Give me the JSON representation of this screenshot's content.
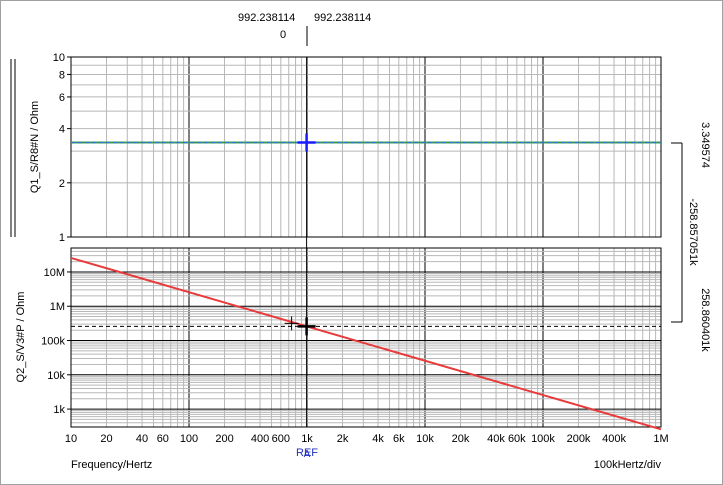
{
  "header": {
    "cursor_a_value": "992.238114",
    "cursor_b_value": "992.238114",
    "cursor_offset": "0"
  },
  "footer": {
    "x_axis_label": "Frequency/Hertz",
    "x_div_label": "100kHertz/div",
    "ref_label": "REF",
    "ref_marker": "A"
  },
  "right_readouts": {
    "top_value": "3.349574",
    "mid_value": "-258.857051k",
    "bottom_value": "258.860401k"
  },
  "colors": {
    "background": "#ffffff",
    "grid_major": "#000000",
    "grid_minor": "#b8b8b8",
    "series_top": "#3a9a64",
    "series_top_overlay": "#2f6fd6",
    "series_bottom": "#e83a3a",
    "cursor_top": "#1a1aff",
    "cursor_bottom": "#000000"
  },
  "chart_data": [
    {
      "type": "line",
      "ylabel": "Q1_S/R8#N  / Ohm",
      "x_scale": "log",
      "y_scale": "log",
      "xlim": [
        10,
        1000000
      ],
      "ylim": [
        1,
        10
      ],
      "y_tick_labels": [
        "1",
        "2",
        "4",
        "6",
        "8",
        "10"
      ],
      "y_ticks": [
        1,
        2,
        4,
        6,
        8,
        10
      ],
      "series": [
        {
          "x": [
            10,
            1000000
          ],
          "y": [
            3.349574,
            3.349574
          ]
        }
      ],
      "cursor": {
        "x": 992.238114,
        "y": 3.349574
      },
      "grid": true
    },
    {
      "type": "line",
      "ylabel": "Q2_S/V3#P  / Ohm",
      "x_scale": "log",
      "y_scale": "log",
      "xlim": [
        10,
        1000000
      ],
      "ylim": [
        300,
        50000000
      ],
      "y_tick_labels": [
        "1k",
        "10k",
        "100k",
        "1M",
        "10M"
      ],
      "y_ticks": [
        1000,
        10000,
        100000,
        1000000,
        10000000
      ],
      "x_tick_labels": [
        "10",
        "20",
        "40",
        "60",
        "100",
        "200",
        "400",
        "600",
        "1k",
        "2k",
        "4k",
        "6k",
        "10k",
        "20k",
        "40k",
        "60k",
        "100k",
        "200k",
        "400k",
        "1M"
      ],
      "x_ticks": [
        10,
        20,
        40,
        60,
        100,
        200,
        400,
        600,
        1000,
        2000,
        4000,
        6000,
        10000,
        20000,
        40000,
        60000,
        100000,
        200000,
        400000,
        1000000
      ],
      "series": [
        {
          "x": [
            10,
            1000000
          ],
          "y": [
            25686000,
            256.86
          ]
        }
      ],
      "reference_y": 258860.401,
      "cursor": {
        "x": 992.238114,
        "y": 258860.401
      },
      "grid": true
    }
  ]
}
